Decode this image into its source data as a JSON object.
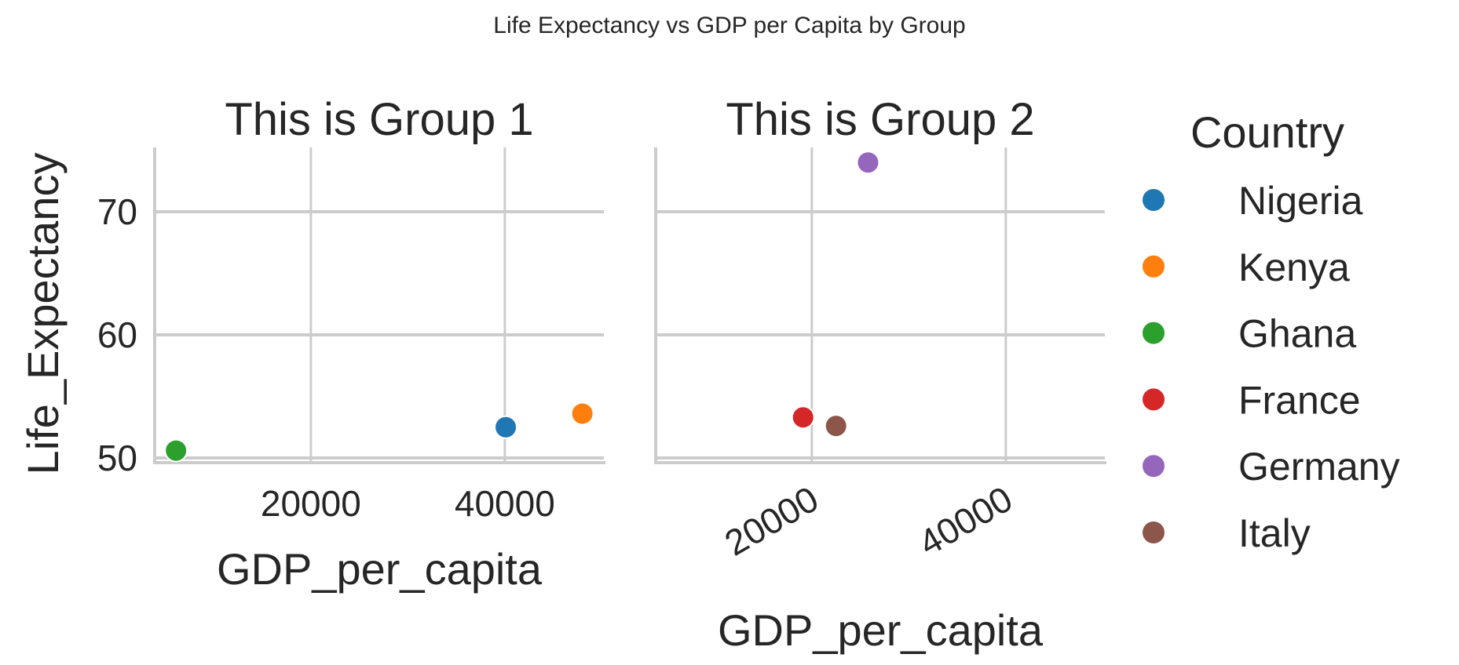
{
  "chart_data": {
    "type": "scatter",
    "title": "Life Expectancy vs GDP per Capita by Group",
    "ylabel": "Life_Expectancy",
    "xlabel": "GDP_per_capita",
    "ylim": [
      49.6,
      75.5
    ],
    "xlim": [
      3900,
      50200
    ],
    "yticks": [
      "50",
      "60",
      "70"
    ],
    "xticks": [
      "20000",
      "40000"
    ],
    "grid": true,
    "legend": {
      "title": "Country",
      "placement": "right",
      "entries": [
        {
          "label": "Nigeria",
          "color": "#1f77b4"
        },
        {
          "label": "Kenya",
          "color": "#ff7f0e"
        },
        {
          "label": "Ghana",
          "color": "#2ca02c"
        },
        {
          "label": "France",
          "color": "#d62728"
        },
        {
          "label": "Germany",
          "color": "#9467bd"
        },
        {
          "label": "Italy",
          "color": "#8c564b"
        }
      ]
    },
    "panels": [
      {
        "title": "This is Group 1",
        "xtick_rotation": 0,
        "points": [
          {
            "country": "Nigeria",
            "x": 40100,
            "y": 52.5
          },
          {
            "country": "Kenya",
            "x": 48000,
            "y": 53.6
          },
          {
            "country": "Ghana",
            "x": 6100,
            "y": 50.6
          }
        ]
      },
      {
        "title": "This is Group 2",
        "xtick_rotation": 30,
        "points": [
          {
            "country": "France",
            "x": 19100,
            "y": 53.3
          },
          {
            "country": "Germany",
            "x": 25800,
            "y": 74.0
          },
          {
            "country": "Italy",
            "x": 22500,
            "y": 52.6
          }
        ]
      }
    ]
  }
}
